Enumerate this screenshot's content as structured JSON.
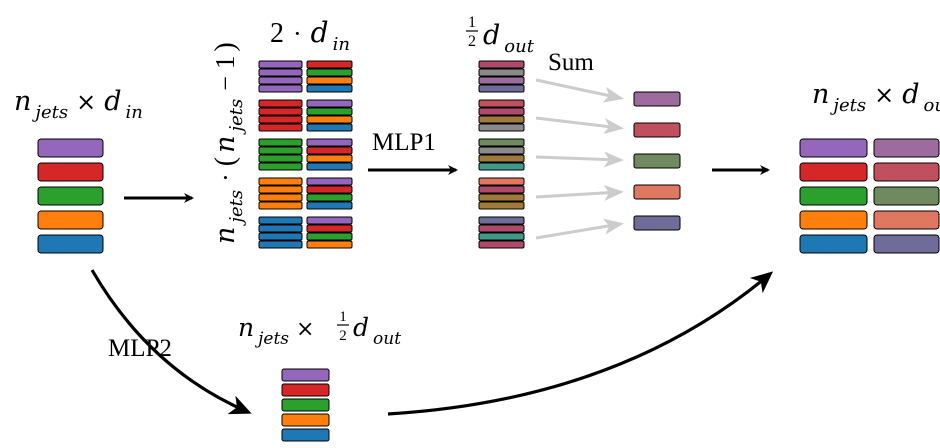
{
  "colors": {
    "purple": "#9467bd",
    "red": "#d62728",
    "green": "#2ca02c",
    "orange": "#ff7f0e",
    "blue": "#1f77b4",
    "sum_purple": "#9e6b9e",
    "sum_red": "#c0505e",
    "sum_green": "#6e8a5e",
    "sum_orange": "#e07860",
    "sum_blue": "#6f6c9a",
    "mix_a": "#b04a6a",
    "mix_b": "#8a8a8a",
    "mix_c": "#a07a3a",
    "mix_d": "#3f9a8a",
    "arrow_main": "#000000",
    "arrow_sum": "#cccccc"
  },
  "labels": {
    "input": {
      "n": "n",
      "n_sub": "jets",
      "times": "×",
      "d": "d",
      "d_sub": "in"
    },
    "pairs_width": {
      "two": "2",
      "dot": "·",
      "d": "d",
      "d_sub": "in"
    },
    "pairs_count": {
      "n1": "n",
      "n1_sub": "jets",
      "dot": "·",
      "paren_open": "(",
      "n2": "n",
      "n2_sub": "jets",
      "minus": "−",
      "one": "1",
      "paren_close": ")"
    },
    "half_dout": {
      "num": "1",
      "den": "2",
      "d": "d",
      "d_sub": "out"
    },
    "sum": "Sum",
    "mlp1": "MLP1",
    "mlp2": "MLP2",
    "branch": {
      "n": "n",
      "n_sub": "jets",
      "times": "×",
      "num": "1",
      "den": "2",
      "d": "d",
      "d_sub": "out"
    },
    "output": {
      "n": "n",
      "n_sub": "jets",
      "times": "×",
      "d": "d",
      "d_sub": "out"
    }
  }
}
